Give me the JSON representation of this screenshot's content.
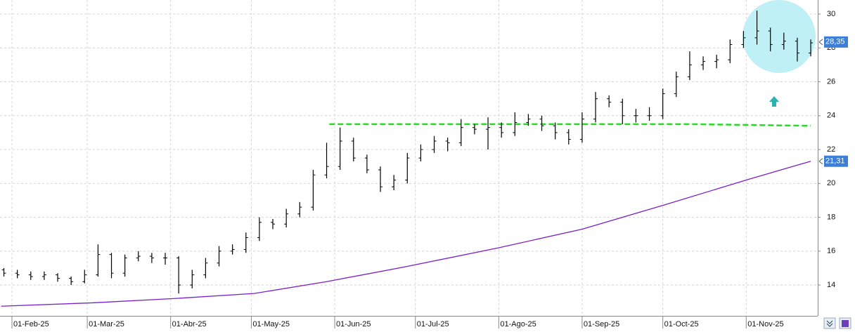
{
  "chart_data": {
    "type": "ohlc",
    "xlim": [
      -4.445,
      299.6
    ],
    "ylim": [
      12.18,
      30.83
    ],
    "xticks": [
      {
        "value": 0,
        "label": "01-Feb-25"
      },
      {
        "value": 28,
        "label": "01-Mar-25"
      },
      {
        "value": 59,
        "label": "01-Abr-25"
      },
      {
        "value": 89,
        "label": "01-May-25"
      },
      {
        "value": 120,
        "label": "01-Jun-25"
      },
      {
        "value": 150,
        "label": "01-Jul-25"
      },
      {
        "value": 181,
        "label": "01-Ago-25"
      },
      {
        "value": 212,
        "label": "01-Sep-25"
      },
      {
        "value": 242,
        "label": "01-Oct-25"
      },
      {
        "value": 273,
        "label": "01-Nov-25"
      }
    ],
    "yticks": [
      14,
      16,
      18,
      20,
      22,
      24,
      26,
      28,
      30
    ],
    "grid": true,
    "ohlc": {
      "color": "#000000",
      "x": [
        -3,
        2,
        7,
        12,
        17,
        22,
        27,
        32,
        37,
        42,
        47,
        52,
        57,
        62,
        67,
        72,
        77,
        82,
        87,
        92,
        97,
        102,
        107,
        112,
        117,
        122,
        127,
        132,
        137,
        142,
        147,
        152,
        157,
        162,
        167,
        172,
        177,
        182,
        187,
        192,
        197,
        202,
        207,
        212,
        217,
        222,
        227,
        232,
        237,
        242,
        247,
        252,
        257,
        262,
        267,
        272,
        277,
        282,
        287,
        292,
        297
      ],
      "values": [
        [
          14.9,
          15.0,
          14.5,
          14.7
        ],
        [
          14.7,
          14.9,
          14.4,
          14.6
        ],
        [
          14.6,
          14.8,
          14.3,
          14.5
        ],
        [
          14.5,
          14.8,
          14.3,
          14.6
        ],
        [
          14.6,
          14.7,
          14.2,
          14.4
        ],
        [
          14.4,
          14.5,
          14.0,
          14.2
        ],
        [
          14.2,
          14.9,
          14.1,
          14.6
        ],
        [
          14.6,
          16.4,
          14.5,
          15.8
        ],
        [
          15.8,
          15.9,
          14.4,
          14.7
        ],
        [
          14.7,
          15.8,
          14.5,
          15.6
        ],
        [
          15.6,
          16.0,
          15.4,
          15.7
        ],
        [
          15.7,
          15.9,
          15.3,
          15.6
        ],
        [
          15.6,
          15.9,
          15.2,
          15.6
        ],
        [
          15.6,
          15.7,
          13.5,
          14.0
        ],
        [
          14.0,
          14.9,
          13.8,
          14.6
        ],
        [
          14.6,
          15.6,
          14.4,
          15.3
        ],
        [
          15.3,
          16.3,
          15.1,
          16.0
        ],
        [
          16.0,
          16.4,
          15.8,
          16.1
        ],
        [
          16.1,
          17.1,
          15.9,
          16.8
        ],
        [
          16.8,
          18.0,
          16.6,
          17.7
        ],
        [
          17.7,
          17.9,
          17.3,
          17.6
        ],
        [
          17.6,
          18.5,
          17.4,
          18.2
        ],
        [
          18.2,
          18.9,
          18.0,
          18.6
        ],
        [
          18.6,
          20.8,
          18.4,
          20.5
        ],
        [
          20.5,
          22.4,
          20.3,
          21.0
        ],
        [
          21.0,
          23.3,
          20.8,
          22.5
        ],
        [
          22.5,
          22.7,
          21.3,
          21.5
        ],
        [
          21.5,
          21.7,
          20.6,
          20.8
        ],
        [
          20.8,
          21.0,
          19.5,
          19.8
        ],
        [
          19.8,
          20.5,
          19.6,
          20.2
        ],
        [
          20.2,
          21.8,
          20.0,
          21.5
        ],
        [
          21.5,
          22.3,
          21.3,
          22.0
        ],
        [
          22.0,
          22.8,
          21.8,
          22.5
        ],
        [
          22.5,
          22.7,
          21.9,
          22.4
        ],
        [
          22.4,
          23.8,
          22.2,
          23.3
        ],
        [
          23.3,
          23.5,
          22.9,
          23.2
        ],
        [
          23.2,
          23.9,
          22.0,
          23.3
        ],
        [
          23.3,
          23.6,
          22.7,
          23.0
        ],
        [
          23.0,
          24.2,
          22.8,
          23.6
        ],
        [
          23.6,
          24.1,
          23.4,
          23.8
        ],
        [
          23.8,
          24.0,
          23.1,
          23.4
        ],
        [
          23.4,
          23.6,
          22.6,
          23.0
        ],
        [
          23.0,
          23.2,
          22.3,
          22.6
        ],
        [
          22.6,
          24.2,
          22.4,
          23.8
        ],
        [
          23.8,
          25.4,
          23.6,
          25.0
        ],
        [
          25.0,
          25.2,
          24.5,
          24.8
        ],
        [
          24.8,
          25.0,
          23.5,
          24.0
        ],
        [
          24.0,
          24.4,
          23.6,
          24.0
        ],
        [
          24.0,
          24.5,
          23.7,
          24.0
        ],
        [
          24.0,
          25.6,
          23.8,
          25.3
        ],
        [
          25.3,
          26.6,
          25.1,
          26.3
        ],
        [
          26.3,
          27.8,
          26.1,
          27.0
        ],
        [
          27.0,
          27.5,
          26.7,
          27.2
        ],
        [
          27.2,
          27.6,
          26.8,
          27.3
        ],
        [
          27.3,
          28.5,
          27.1,
          28.2
        ],
        [
          28.2,
          29.0,
          28.0,
          28.6
        ],
        [
          28.6,
          30.2,
          28.2,
          29.0
        ],
        [
          29.0,
          29.2,
          27.8,
          28.2
        ],
        [
          28.2,
          28.9,
          27.9,
          28.4
        ],
        [
          28.4,
          28.6,
          27.2,
          27.7
        ],
        [
          27.7,
          28.5,
          27.5,
          28.3
        ]
      ]
    },
    "moving_average": {
      "color": "#7b1fc9",
      "x": [
        -4,
        30,
        60,
        90,
        117,
        147,
        181,
        212,
        242,
        273,
        297
      ],
      "values": [
        12.75,
        12.95,
        13.2,
        13.5,
        14.2,
        15.1,
        16.2,
        17.3,
        18.7,
        20.2,
        21.31
      ]
    },
    "support_line": {
      "color": "#22dd22",
      "x": [
        118,
        253,
        297
      ],
      "values": [
        23.5,
        23.5,
        23.4
      ]
    },
    "price_tags": [
      {
        "value": 28.35,
        "label": "28,35"
      },
      {
        "value": 21.31,
        "label": "21,31"
      }
    ],
    "tag_color": "#3b7fd6"
  }
}
